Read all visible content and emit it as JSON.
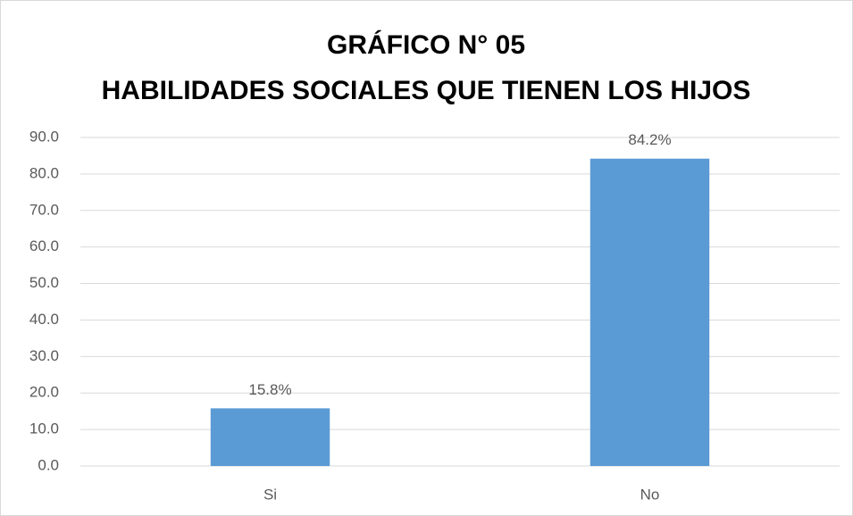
{
  "chart_data": {
    "type": "bar",
    "title": "GRÁFICO N° 05",
    "subtitle": "HABILIDADES SOCIALES QUE TIENEN LOS HIJOS",
    "categories": [
      "Si",
      "No"
    ],
    "values": [
      15.8,
      84.2
    ],
    "value_labels": [
      "15.8%",
      "84.2%"
    ],
    "color": "#5b9bd5",
    "ylim": [
      0,
      90
    ],
    "yticks": [
      {
        "value": 0,
        "label": "0.0"
      },
      {
        "value": 10,
        "label": "10.0"
      },
      {
        "value": 20,
        "label": "20.0"
      },
      {
        "value": 30,
        "label": "30.0"
      },
      {
        "value": 40,
        "label": "40.0"
      },
      {
        "value": 50,
        "label": "50.0"
      },
      {
        "value": 60,
        "label": "60.0"
      },
      {
        "value": 70,
        "label": "70.0"
      },
      {
        "value": 80,
        "label": "80.0"
      },
      {
        "value": 90,
        "label": "90.0"
      }
    ],
    "grid": true
  }
}
